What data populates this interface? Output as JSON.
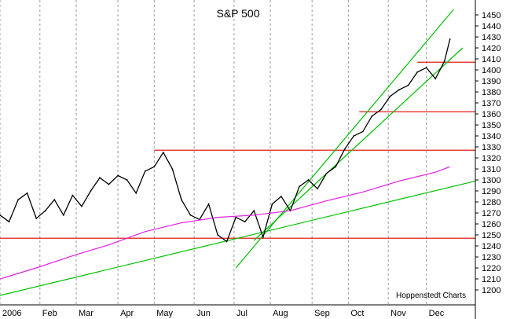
{
  "chart_data": {
    "type": "line",
    "title": "S&P 500",
    "credit": "Hoppenstedt Charts",
    "ylim": [
      1195,
      1455
    ],
    "y_ticks": [
      1200,
      1210,
      1220,
      1230,
      1240,
      1250,
      1260,
      1270,
      1280,
      1290,
      1300,
      1310,
      1320,
      1330,
      1340,
      1350,
      1360,
      1370,
      1380,
      1390,
      1400,
      1410,
      1420,
      1430,
      1440,
      1450
    ],
    "x_range_days": [
      0,
      262
    ],
    "x_ticks": [
      {
        "label": "2006",
        "day": 0
      },
      {
        "label": "Feb",
        "day": 22
      },
      {
        "label": "Mar",
        "day": 42
      },
      {
        "label": "Apr",
        "day": 65
      },
      {
        "label": "May",
        "day": 85
      },
      {
        "label": "Jun",
        "day": 107
      },
      {
        "label": "Jul",
        "day": 129
      },
      {
        "label": "Aug",
        "day": 149
      },
      {
        "label": "Sep",
        "day": 172
      },
      {
        "label": "Oct",
        "day": 192
      },
      {
        "label": "Nov",
        "day": 214
      },
      {
        "label": "Dec",
        "day": 235
      }
    ],
    "grid": true,
    "series": [
      {
        "role": "price",
        "color": "#000000",
        "x": [
          0,
          5,
          10,
          15,
          20,
          25,
          30,
          35,
          40,
          45,
          50,
          55,
          60,
          65,
          70,
          75,
          80,
          85,
          90,
          95,
          100,
          105,
          110,
          115,
          120,
          125,
          130,
          135,
          140,
          145,
          150,
          155,
          160,
          165,
          170,
          175,
          180,
          185,
          190,
          195,
          200,
          205,
          210,
          215,
          220,
          225,
          230,
          235,
          240,
          245,
          248
        ],
        "values": [
          1268,
          1262,
          1282,
          1288,
          1265,
          1272,
          1282,
          1268,
          1286,
          1276,
          1290,
          1302,
          1296,
          1304,
          1300,
          1288,
          1308,
          1312,
          1325,
          1310,
          1282,
          1268,
          1264,
          1278,
          1250,
          1244,
          1266,
          1262,
          1272,
          1248,
          1278,
          1285,
          1272,
          1294,
          1300,
          1292,
          1306,
          1312,
          1328,
          1340,
          1344,
          1358,
          1364,
          1376,
          1382,
          1386,
          1398,
          1402,
          1392,
          1408,
          1428
        ]
      },
      {
        "role": "moving-average",
        "color": "#e020e0",
        "x": [
          0,
          20,
          40,
          60,
          80,
          100,
          120,
          140,
          160,
          180,
          200,
          220,
          240,
          248
        ],
        "values": [
          1210,
          1220,
          1231,
          1241,
          1253,
          1261,
          1266,
          1268,
          1272,
          1281,
          1289,
          1299,
          1307,
          1312
        ]
      }
    ],
    "trendlines": [
      {
        "color": "#00c000",
        "points": [
          [
            0,
            1195
          ],
          [
            262,
            1299
          ]
        ]
      },
      {
        "color": "#00c000",
        "points": [
          [
            130,
            1220
          ],
          [
            250,
            1455
          ]
        ]
      },
      {
        "color": "#00c000",
        "points": [
          [
            140,
            1245
          ],
          [
            255,
            1420
          ]
        ]
      }
    ],
    "levels": [
      {
        "color": "#e00000",
        "value": 1247,
        "from": 0,
        "to": 262
      },
      {
        "color": "#e00000",
        "value": 1327,
        "from": 85,
        "to": 262
      },
      {
        "color": "#e00000",
        "value": 1362,
        "from": 198,
        "to": 262
      },
      {
        "color": "#e00000",
        "value": 1407,
        "from": 230,
        "to": 262
      }
    ]
  }
}
